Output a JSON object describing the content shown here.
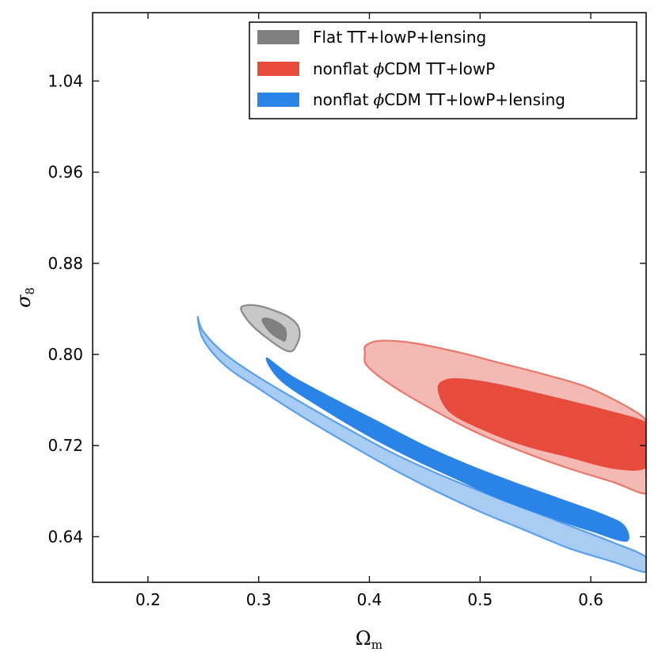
{
  "chart_data": {
    "type": "contour",
    "xlabel": "Ω",
    "xlabel_sub": "m",
    "ylabel": "σ",
    "ylabel_sub": "8",
    "xlim": [
      0.15,
      0.65
    ],
    "ylim": [
      0.6,
      1.1
    ],
    "xticks": [
      0.2,
      0.3,
      0.4,
      0.5,
      0.6
    ],
    "xtick_labels": [
      "0.2",
      "0.3",
      "0.4",
      "0.5",
      "0.6"
    ],
    "yticks": [
      0.64,
      0.72,
      0.8,
      0.88,
      0.96,
      1.04
    ],
    "ytick_labels": [
      "0.64",
      "0.72",
      "0.80",
      "0.88",
      "0.96",
      "1.04"
    ],
    "legend_position": "top-right",
    "series": [
      {
        "name": "Flat TT+lowP+lensing",
        "legend_parts": [
          "Flat TT+lowP+lensing"
        ],
        "color": "#808080",
        "outer_color": "#c8c8c8",
        "edge_color": "#8a8a8a",
        "center": [
          0.311,
          0.82
        ],
        "contours": {
          "outer": [
            [
              0.284,
              0.84
            ],
            [
              0.29,
              0.83
            ],
            [
              0.299,
              0.821
            ],
            [
              0.308,
              0.814
            ],
            [
              0.318,
              0.807
            ],
            [
              0.326,
              0.803
            ],
            [
              0.33,
              0.803
            ],
            [
              0.333,
              0.806
            ],
            [
              0.337,
              0.816
            ],
            [
              0.335,
              0.826
            ],
            [
              0.325,
              0.834
            ],
            [
              0.31,
              0.84
            ],
            [
              0.298,
              0.843
            ],
            [
              0.288,
              0.843
            ]
          ],
          "inner": [
            [
              0.303,
              0.83
            ],
            [
              0.307,
              0.823
            ],
            [
              0.313,
              0.817
            ],
            [
              0.32,
              0.813
            ],
            [
              0.324,
              0.812
            ],
            [
              0.325,
              0.82
            ],
            [
              0.322,
              0.825
            ],
            [
              0.314,
              0.83
            ],
            [
              0.306,
              0.832
            ]
          ]
        }
      },
      {
        "name": "nonflat ϕCDM TT+lowP",
        "legend_parts": [
          "nonflat ",
          "ϕ",
          "CDM TT+lowP"
        ],
        "color": "#e64b3c",
        "outer_color": "#f4b9b2",
        "edge_color": "#e8786b",
        "center": [
          0.55,
          0.74
        ],
        "contours": {
          "outer": [
            [
              0.396,
              0.801
            ],
            [
              0.398,
              0.79
            ],
            [
              0.42,
              0.773
            ],
            [
              0.46,
              0.75
            ],
            [
              0.5,
              0.73
            ],
            [
              0.54,
              0.714
            ],
            [
              0.58,
              0.7
            ],
            [
              0.62,
              0.688
            ],
            [
              0.65,
              0.678
            ],
            [
              0.65,
              0.695
            ],
            [
              0.65,
              0.72
            ],
            [
              0.65,
              0.74
            ],
            [
              0.64,
              0.75
            ],
            [
              0.6,
              0.77
            ],
            [
              0.56,
              0.782
            ],
            [
              0.52,
              0.792
            ],
            [
              0.48,
              0.802
            ],
            [
              0.44,
              0.81
            ],
            [
              0.41,
              0.812
            ],
            [
              0.397,
              0.808
            ]
          ],
          "inner": [
            [
              0.462,
              0.77
            ],
            [
              0.472,
              0.75
            ],
            [
              0.5,
              0.735
            ],
            [
              0.54,
              0.72
            ],
            [
              0.58,
              0.71
            ],
            [
              0.62,
              0.7
            ],
            [
              0.65,
              0.701
            ],
            [
              0.65,
              0.725
            ],
            [
              0.65,
              0.74
            ],
            [
              0.61,
              0.752
            ],
            [
              0.56,
              0.764
            ],
            [
              0.52,
              0.773
            ],
            [
              0.49,
              0.778
            ],
            [
              0.47,
              0.778
            ]
          ]
        }
      },
      {
        "name": "nonflat ϕCDM TT+lowP+lensing",
        "legend_parts": [
          "nonflat ",
          "ϕ",
          "CDM TT+lowP+lensing"
        ],
        "color": "#2a84e8",
        "outer_color": "#a9ccf3",
        "edge_color": "#5aa0ec",
        "center": [
          0.45,
          0.72
        ],
        "contours": {
          "outer": [
            [
              0.245,
              0.833
            ],
            [
              0.25,
              0.82
            ],
            [
              0.27,
              0.8
            ],
            [
              0.3,
              0.78
            ],
            [
              0.34,
              0.757
            ],
            [
              0.38,
              0.735
            ],
            [
              0.42,
              0.714
            ],
            [
              0.46,
              0.696
            ],
            [
              0.5,
              0.68
            ],
            [
              0.54,
              0.665
            ],
            [
              0.58,
              0.65
            ],
            [
              0.62,
              0.635
            ],
            [
              0.65,
              0.622
            ],
            [
              0.65,
              0.609
            ],
            [
              0.62,
              0.618
            ],
            [
              0.58,
              0.63
            ],
            [
              0.54,
              0.646
            ],
            [
              0.5,
              0.662
            ],
            [
              0.46,
              0.68
            ],
            [
              0.42,
              0.7
            ],
            [
              0.38,
              0.722
            ],
            [
              0.34,
              0.745
            ],
            [
              0.3,
              0.77
            ],
            [
              0.27,
              0.79
            ],
            [
              0.25,
              0.813
            ]
          ],
          "inner": [
            [
              0.307,
              0.797
            ],
            [
              0.33,
              0.781
            ],
            [
              0.37,
              0.76
            ],
            [
              0.41,
              0.74
            ],
            [
              0.45,
              0.72
            ],
            [
              0.49,
              0.703
            ],
            [
              0.53,
              0.688
            ],
            [
              0.57,
              0.674
            ],
            [
              0.61,
              0.66
            ],
            [
              0.63,
              0.65
            ],
            [
              0.632,
              0.636
            ],
            [
              0.6,
              0.645
            ],
            [
              0.56,
              0.658
            ],
            [
              0.52,
              0.672
            ],
            [
              0.48,
              0.69
            ],
            [
              0.44,
              0.708
            ],
            [
              0.4,
              0.728
            ],
            [
              0.36,
              0.751
            ],
            [
              0.32,
              0.777
            ]
          ]
        }
      }
    ]
  }
}
